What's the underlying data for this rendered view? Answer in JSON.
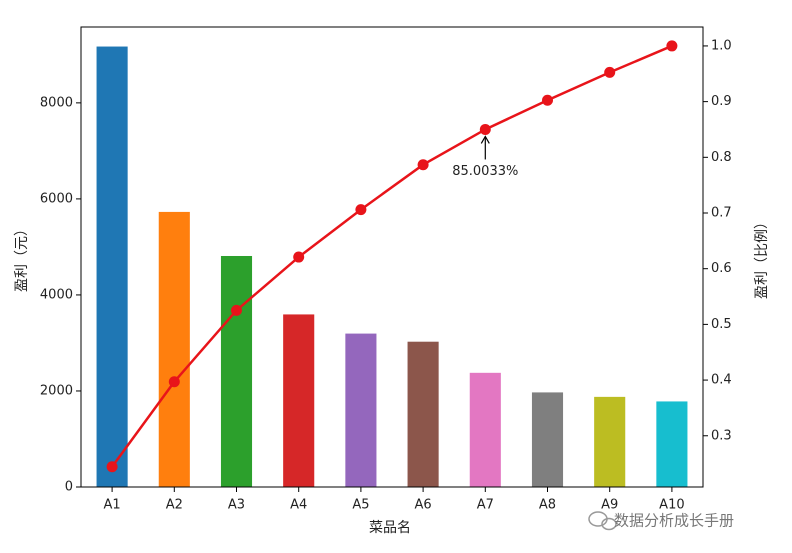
{
  "chart_data": {
    "type": "pareto",
    "categories": [
      "A1",
      "A2",
      "A3",
      "A4",
      "A5",
      "A6",
      "A7",
      "A8",
      "A9",
      "A10"
    ],
    "series": [
      {
        "type": "bar",
        "colors": [
          "#1f77b4",
          "#ff7f0e",
          "#2ca02c",
          "#d62728",
          "#9467bd",
          "#8c564b",
          "#e377c2",
          "#7f7f7f",
          "#bcbd22",
          "#17becf"
        ],
        "values": [
          9173,
          5729,
          4811,
          3594,
          3195,
          3026,
          2378,
          1970,
          1877,
          1782
        ]
      },
      {
        "type": "line",
        "axis": "y2",
        "color": "#e8141a",
        "values": [
          0.2444,
          0.397,
          0.5252,
          0.6209,
          0.7061,
          0.7867,
          0.850033,
          0.9025,
          0.9525,
          1.0
        ],
        "value_labels": [
          null,
          null,
          null,
          null,
          null,
          null,
          "85.0033%",
          null,
          null,
          null
        ]
      }
    ],
    "xlabel": "菜品名",
    "ylabel": "盈利（元）",
    "y2label": "盈利（比例）",
    "ylim": [
      0,
      9580
    ],
    "yticks": [
      0,
      2000,
      4000,
      6000,
      8000
    ],
    "y2lim": [
      0.208,
      1.034
    ],
    "y2ticks": [
      0.3,
      0.4,
      0.5,
      0.6,
      0.7,
      0.8,
      0.9,
      {
        "value": 1,
        "label": "1.0"
      }
    ],
    "watermark": "数据分析成长手册"
  }
}
